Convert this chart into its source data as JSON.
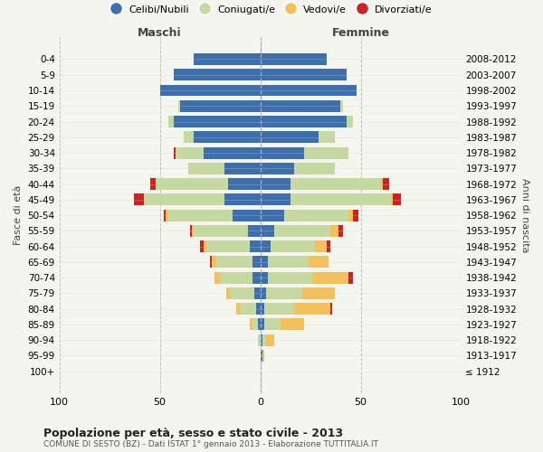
{
  "age_groups": [
    "100+",
    "95-99",
    "90-94",
    "85-89",
    "80-84",
    "75-79",
    "70-74",
    "65-69",
    "60-64",
    "55-59",
    "50-54",
    "45-49",
    "40-44",
    "35-39",
    "30-34",
    "25-29",
    "20-24",
    "15-19",
    "10-14",
    "5-9",
    "0-4"
  ],
  "birth_years": [
    "≤ 1912",
    "1913-1917",
    "1918-1922",
    "1923-1927",
    "1928-1932",
    "1933-1937",
    "1938-1942",
    "1943-1947",
    "1948-1952",
    "1953-1957",
    "1958-1962",
    "1963-1967",
    "1968-1972",
    "1973-1977",
    "1978-1982",
    "1983-1987",
    "1988-1992",
    "1993-1997",
    "1998-2002",
    "2003-2007",
    "2008-2012"
  ],
  "colors": {
    "celibi": "#3d6fad",
    "coniugati": "#c5d9a0",
    "vedovi": "#f5c05a",
    "divorziati": "#cc2222"
  },
  "maschi": {
    "celibi": [
      0,
      0,
      0,
      1,
      2,
      3,
      4,
      4,
      5,
      6,
      14,
      18,
      16,
      18,
      28,
      33,
      43,
      40,
      50,
      43,
      33
    ],
    "coniugati": [
      0,
      0,
      1,
      3,
      8,
      12,
      16,
      18,
      22,
      27,
      32,
      40,
      36,
      18,
      14,
      5,
      3,
      1,
      0,
      0,
      0
    ],
    "vedovi": [
      0,
      0,
      0,
      1,
      2,
      2,
      3,
      2,
      1,
      1,
      1,
      0,
      0,
      0,
      0,
      0,
      0,
      0,
      0,
      0,
      0
    ],
    "divorziati": [
      0,
      0,
      0,
      0,
      0,
      0,
      0,
      1,
      2,
      1,
      1,
      5,
      3,
      0,
      1,
      0,
      0,
      0,
      0,
      0,
      0
    ]
  },
  "femmine": {
    "celibi": [
      0,
      1,
      1,
      2,
      2,
      3,
      4,
      4,
      5,
      7,
      12,
      15,
      15,
      17,
      22,
      29,
      43,
      40,
      48,
      43,
      33
    ],
    "coniugati": [
      0,
      0,
      2,
      8,
      15,
      18,
      22,
      20,
      22,
      28,
      32,
      50,
      45,
      20,
      22,
      8,
      3,
      1,
      0,
      0,
      0
    ],
    "vedovi": [
      0,
      1,
      4,
      12,
      18,
      16,
      18,
      10,
      6,
      4,
      2,
      1,
      1,
      0,
      0,
      0,
      0,
      0,
      0,
      0,
      0
    ],
    "divorziati": [
      0,
      0,
      0,
      0,
      1,
      0,
      2,
      0,
      2,
      2,
      3,
      4,
      3,
      0,
      0,
      0,
      0,
      0,
      0,
      0,
      0
    ]
  },
  "xlim": 100,
  "title": "Popolazione per età, sesso e stato civile - 2013",
  "subtitle": "COMUNE DI SESTO (BZ) - Dati ISTAT 1° gennaio 2013 - Elaborazione TUTTITALIA.IT",
  "ylabel_left": "Fasce di età",
  "ylabel_right": "Anni di nascita",
  "xlabel_left": "Maschi",
  "xlabel_right": "Femmine",
  "legend_labels": [
    "Celibi/Nubili",
    "Coniugati/e",
    "Vedovi/e",
    "Divorziati/e"
  ],
  "bg_color": "#f5f5f0"
}
